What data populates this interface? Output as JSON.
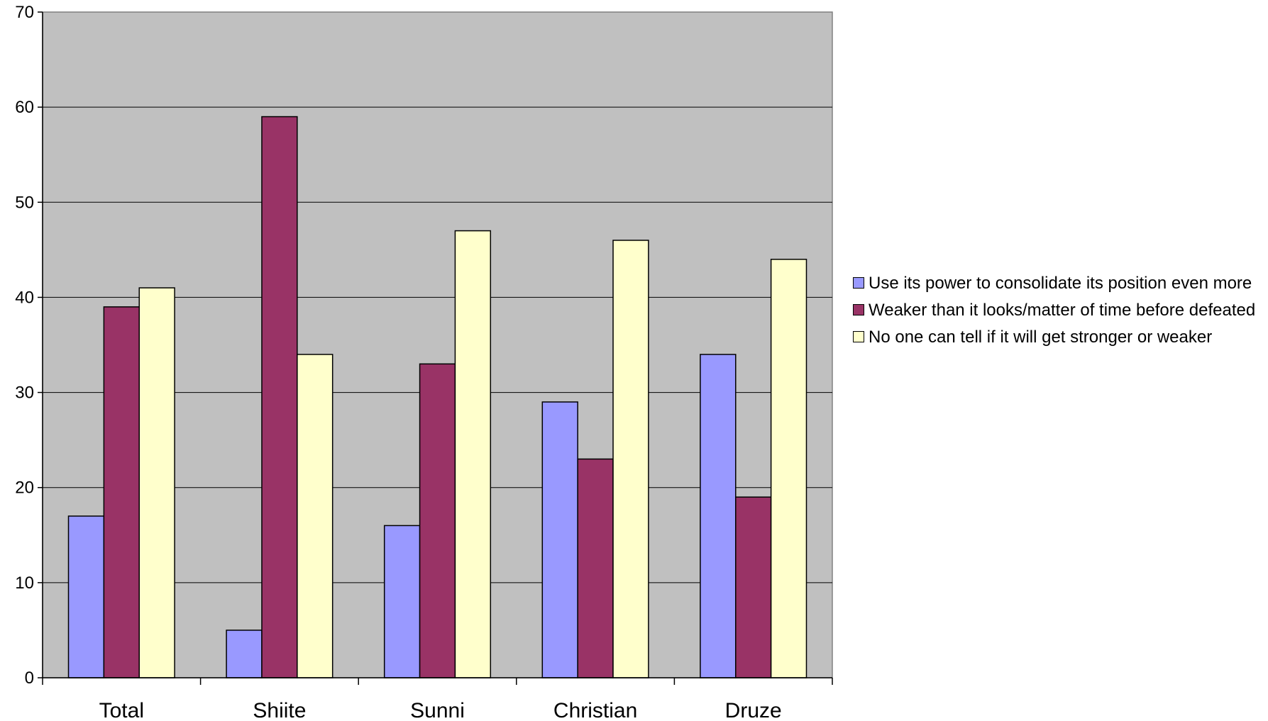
{
  "chart_data": {
    "type": "bar",
    "categories": [
      "Total",
      "Shiite",
      "Sunni",
      "Christian",
      "Druze"
    ],
    "series": [
      {
        "name": "Use its power to consolidate its position even more",
        "color": "#9999ff",
        "values": [
          17,
          5,
          16,
          29,
          34
        ]
      },
      {
        "name": "Weaker than it looks/matter of time before defeated",
        "color": "#993366",
        "values": [
          39,
          59,
          33,
          23,
          19
        ]
      },
      {
        "name": "No one can tell if it will get stronger or weaker",
        "color": "#ffffcc",
        "values": [
          41,
          34,
          47,
          46,
          44
        ]
      }
    ],
    "title": "",
    "xlabel": "",
    "ylabel": "",
    "ylim": [
      0,
      70
    ],
    "yticks": [
      "0",
      "10",
      "20",
      "30",
      "40",
      "50",
      "60",
      "70"
    ],
    "grid": true,
    "plot_background": "#c0c0c0",
    "legend_position": "right"
  }
}
